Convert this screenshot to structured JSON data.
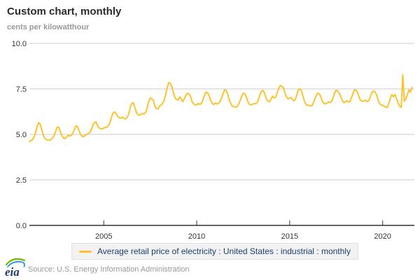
{
  "header": {
    "title": "Custom chart, monthly",
    "units": "cents per kilowatthour"
  },
  "legend": {
    "label": "Average retail price of electricity : United States : industrial : monthly",
    "swatch_color": "#FCC32D"
  },
  "footer": {
    "logo_text": "eia",
    "source": "Source: U.S. Energy Information Administration"
  },
  "colors": {
    "line": "#FCC32D",
    "grid": "#cccccc",
    "axis": "#333333",
    "tick_label": "#333333",
    "legend_text": "#1c3f6e",
    "muted_text": "#999999"
  },
  "chart_data": {
    "type": "line",
    "title": "Custom chart, monthly",
    "ylabel": "cents per kilowatthour",
    "xlabel": "",
    "ylim": [
      0.0,
      10.0
    ],
    "yticks": [
      0.0,
      2.5,
      5.0,
      7.5,
      10.0
    ],
    "xticks": [
      2005,
      2010,
      2015,
      2020
    ],
    "grid": true,
    "legend_position": "bottom",
    "x_start_year": 2001,
    "x_start_month": 1,
    "frequency": "monthly",
    "x_end_label": "Aug 2021",
    "series": [
      {
        "name": "Average retail price of electricity : United States : industrial : monthly",
        "color": "#FCC32D",
        "values": [
          4.62,
          4.65,
          4.72,
          4.85,
          5.1,
          5.45,
          5.65,
          5.55,
          5.25,
          4.95,
          4.78,
          4.7,
          4.7,
          4.68,
          4.72,
          4.8,
          4.95,
          5.18,
          5.4,
          5.38,
          5.15,
          4.92,
          4.8,
          4.77,
          4.85,
          4.95,
          4.9,
          4.95,
          5.05,
          5.28,
          5.46,
          5.44,
          5.22,
          5.0,
          4.9,
          4.88,
          4.95,
          5.0,
          5.05,
          5.1,
          5.25,
          5.5,
          5.65,
          5.68,
          5.48,
          5.35,
          5.32,
          5.3,
          5.35,
          5.38,
          5.4,
          5.5,
          5.65,
          5.95,
          6.18,
          6.23,
          6.15,
          5.98,
          5.92,
          5.9,
          5.95,
          5.88,
          5.85,
          5.92,
          6.1,
          6.45,
          6.7,
          6.74,
          6.5,
          6.22,
          6.08,
          6.05,
          6.1,
          6.15,
          6.12,
          6.2,
          6.45,
          6.82,
          7.0,
          6.95,
          6.88,
          6.55,
          6.42,
          6.4,
          6.55,
          6.6,
          6.7,
          6.9,
          7.2,
          7.6,
          7.85,
          7.8,
          7.62,
          7.3,
          7.0,
          6.92,
          6.9,
          7.05,
          6.95,
          6.8,
          6.95,
          7.15,
          7.26,
          7.22,
          7.08,
          6.8,
          6.68,
          6.62,
          6.62,
          6.7,
          6.65,
          6.7,
          6.9,
          7.15,
          7.32,
          7.3,
          7.12,
          6.85,
          6.7,
          6.65,
          6.72,
          6.68,
          6.7,
          6.8,
          7.0,
          7.25,
          7.45,
          7.42,
          7.2,
          6.9,
          6.7,
          6.55,
          6.52,
          6.5,
          6.52,
          6.65,
          6.85,
          7.1,
          7.26,
          7.24,
          7.05,
          6.8,
          6.65,
          6.62,
          6.65,
          6.7,
          6.68,
          6.75,
          6.95,
          7.25,
          7.38,
          7.41,
          7.22,
          6.95,
          6.82,
          6.8,
          6.95,
          7.1,
          7.0,
          7.05,
          7.3,
          7.55,
          7.69,
          7.62,
          7.57,
          7.25,
          7.05,
          6.95,
          7.0,
          7.02,
          6.9,
          6.85,
          7.0,
          7.3,
          7.5,
          7.48,
          7.3,
          6.95,
          6.72,
          6.62,
          6.6,
          6.58,
          6.56,
          6.65,
          6.9,
          7.1,
          7.26,
          7.24,
          7.1,
          6.85,
          6.7,
          6.68,
          6.72,
          6.78,
          6.75,
          6.8,
          7.0,
          7.28,
          7.43,
          7.38,
          7.25,
          7.07,
          6.85,
          6.74,
          6.8,
          6.85,
          6.78,
          6.82,
          7.05,
          7.3,
          7.45,
          7.42,
          7.28,
          7.0,
          6.85,
          6.81,
          6.85,
          6.88,
          6.8,
          6.85,
          7.05,
          7.28,
          7.38,
          7.35,
          7.2,
          6.9,
          6.7,
          6.62,
          6.6,
          6.55,
          6.5,
          6.48,
          6.7,
          7.0,
          7.19,
          7.07,
          7.19,
          6.95,
          6.7,
          6.55,
          6.49,
          8.28,
          6.81,
          6.95,
          7.2,
          7.45,
          7.32,
          7.58
        ]
      }
    ]
  }
}
